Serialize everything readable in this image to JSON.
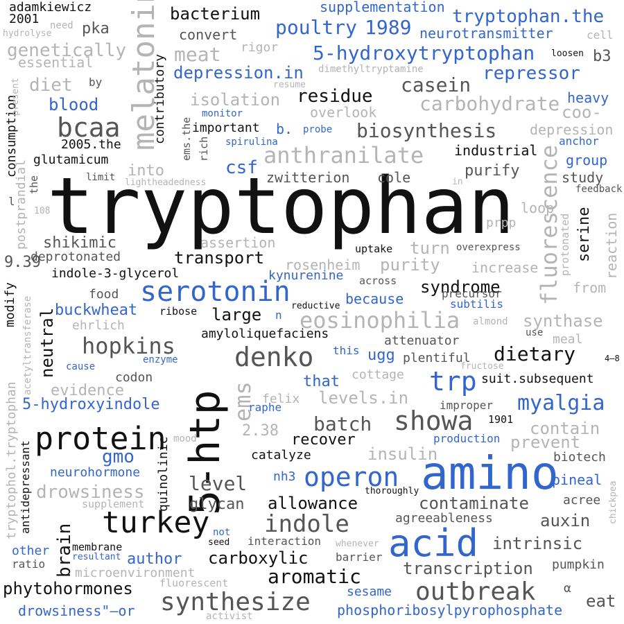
{
  "colors": {
    "black": "#111111",
    "dark_gray": "#555555",
    "light_gray": "#b4b4b4",
    "blue": "#3366cc",
    "background": "#ffffff"
  },
  "words": [
    {
      "text": "tryptophan",
      "color": "#111111"
    },
    {
      "text": "amino",
      "color": "#3366cc"
    },
    {
      "text": "5-htp",
      "color": "#111111"
    },
    {
      "text": "acid",
      "color": "#3366cc"
    },
    {
      "text": "melatonin",
      "color": "#b4b4b4"
    },
    {
      "text": "protein",
      "color": "#111111"
    },
    {
      "text": "serotonin",
      "color": "#3366cc"
    },
    {
      "text": "turkey",
      "color": "#111111"
    },
    {
      "text": "denko",
      "color": "#555555"
    },
    {
      "text": "bcaa",
      "color": "#555555"
    },
    {
      "text": "trp",
      "color": "#3366cc"
    },
    {
      "text": "operon",
      "color": "#3366cc"
    },
    {
      "text": "showa",
      "color": "#555555"
    },
    {
      "text": "synthesize",
      "color": "#555555"
    },
    {
      "text": "outbreak",
      "color": "#555555"
    },
    {
      "text": "anthranilate",
      "color": "#b4b4b4"
    },
    {
      "text": "eosinophilia",
      "color": "#b4b4b4"
    },
    {
      "text": "indole",
      "color": "#555555"
    },
    {
      "text": "hopkins",
      "color": "#555555"
    },
    {
      "text": "ems",
      "color": "#b4b4b4"
    },
    {
      "text": "fluorescence",
      "color": "#b4b4b4"
    },
    {
      "text": "meat",
      "color": "#b4b4b4"
    },
    {
      "text": "5-hydroxytryptophan",
      "color": "#3366cc"
    },
    {
      "text": "poultry",
      "color": "#3366cc"
    },
    {
      "text": "1989",
      "color": "#3366cc"
    },
    {
      "text": "tryptophan.the",
      "color": "#3366cc"
    },
    {
      "text": "repressor",
      "color": "#3366cc"
    },
    {
      "text": "myalgia",
      "color": "#3366cc"
    },
    {
      "text": "biosynthesis",
      "color": "#555555"
    },
    {
      "text": "carbohydrate",
      "color": "#b4b4b4"
    },
    {
      "text": "casein",
      "color": "#555555"
    },
    {
      "text": "residue",
      "color": "#111111"
    },
    {
      "text": "csf",
      "color": "#3366cc"
    },
    {
      "text": "dietary",
      "color": "#111111"
    },
    {
      "text": "batch",
      "color": "#555555"
    },
    {
      "text": "level",
      "color": "#555555"
    },
    {
      "text": "aromatic",
      "color": "#111111"
    },
    {
      "text": "brain",
      "color": "#111111"
    },
    {
      "text": "neutral",
      "color": "#111111"
    },
    {
      "text": "drowsiness",
      "color": "#b4b4b4"
    },
    {
      "text": "gmo",
      "color": "#3366cc"
    },
    {
      "text": "genetically",
      "color": "#b4b4b4"
    },
    {
      "text": "diet",
      "color": "#b4b4b4"
    },
    {
      "text": "blood",
      "color": "#3366cc"
    },
    {
      "text": "depression.in",
      "color": "#3366cc"
    },
    {
      "text": "bacterium",
      "color": "#111111"
    },
    {
      "text": "isolation",
      "color": "#b4b4b4"
    },
    {
      "text": "levels.in",
      "color": "#b4b4b4"
    },
    {
      "text": "contaminate",
      "color": "#555555"
    },
    {
      "text": "transcription",
      "color": "#555555"
    },
    {
      "text": "intrinsic",
      "color": "#555555"
    },
    {
      "text": "auxin",
      "color": "#555555"
    },
    {
      "text": "eat",
      "color": "#555555"
    },
    {
      "text": "b3",
      "color": "#555555"
    },
    {
      "text": "syndrome",
      "color": "#111111"
    },
    {
      "text": "carboxylic",
      "color": "#111111"
    },
    {
      "text": "allowance",
      "color": "#111111"
    },
    {
      "text": "phytohormones",
      "color": "#111111"
    },
    {
      "text": "author",
      "color": "#3366cc"
    },
    {
      "text": "buckwheat",
      "color": "#3366cc"
    },
    {
      "text": "5-hydroxyindole",
      "color": "#3366cc"
    },
    {
      "text": "that",
      "color": "#3366cc"
    },
    {
      "text": "ugg",
      "color": "#3366cc"
    },
    {
      "text": "synthase",
      "color": "#b4b4b4"
    },
    {
      "text": "purity",
      "color": "#b4b4b4"
    },
    {
      "text": "insulin",
      "color": "#b4b4b4"
    },
    {
      "text": "contain",
      "color": "#b4b4b4"
    },
    {
      "text": "prevent",
      "color": "#b4b4b4"
    },
    {
      "text": "evidence",
      "color": "#b4b4b4"
    },
    {
      "text": "turn",
      "color": "#b4b4b4"
    },
    {
      "text": "2.38",
      "color": "#b4b4b4"
    },
    {
      "text": "coo-",
      "color": "#b4b4b4"
    },
    {
      "text": "into",
      "color": "#b4b4b4"
    },
    {
      "text": "transport",
      "color": "#111111"
    },
    {
      "text": "large",
      "color": "#111111"
    },
    {
      "text": "recover",
      "color": "#111111"
    },
    {
      "text": "purify",
      "color": "#555555"
    },
    {
      "text": "pka",
      "color": "#555555"
    },
    {
      "text": "shikimic",
      "color": "#555555"
    },
    {
      "text": "glycan",
      "color": "#555555"
    },
    {
      "text": "9.39",
      "color": "#555555"
    },
    {
      "text": "serine",
      "color": "#111111"
    },
    {
      "text": "heavy",
      "color": "#3366cc"
    },
    {
      "text": "group",
      "color": "#3366cc"
    },
    {
      "text": "pineal",
      "color": "#3366cc"
    },
    {
      "text": "nh3",
      "color": "#3366cc"
    },
    {
      "text": "sesame",
      "color": "#3366cc"
    },
    {
      "text": "phosphoribosylpyrophosphate",
      "color": "#3366cc"
    },
    {
      "text": "drowsiness\"—or",
      "color": "#3366cc"
    },
    {
      "text": "neurohormone",
      "color": "#3366cc"
    },
    {
      "text": "neurotransmitter",
      "color": "#3366cc"
    },
    {
      "text": "supplementation",
      "color": "#3366cc"
    },
    {
      "text": "kynurenine",
      "color": "#3366cc"
    },
    {
      "text": "because",
      "color": "#3366cc"
    },
    {
      "text": "subtilis",
      "color": "#3366cc"
    },
    {
      "text": "production",
      "color": "#3366cc"
    },
    {
      "text": "other",
      "color": "#3366cc"
    },
    {
      "text": "raphe",
      "color": "#3366cc"
    },
    {
      "text": "anchor",
      "color": "#3366cc"
    },
    {
      "text": "spirulina",
      "color": "#3366cc"
    },
    {
      "text": "monitor",
      "color": "#3366cc"
    },
    {
      "text": "probe",
      "color": "#3366cc"
    },
    {
      "text": "b.",
      "color": "#3366cc"
    },
    {
      "text": "cause",
      "color": "#3366cc"
    },
    {
      "text": "enzyme",
      "color": "#3366cc"
    },
    {
      "text": "this",
      "color": "#3366cc"
    },
    {
      "text": "n",
      "color": "#3366cc"
    },
    {
      "text": "not",
      "color": "#3366cc"
    },
    {
      "text": "resultant",
      "color": "#3366cc"
    },
    {
      "text": "important",
      "color": "#111111"
    },
    {
      "text": "industrial",
      "color": "#111111"
    },
    {
      "text": "glutamicum",
      "color": "#111111"
    },
    {
      "text": "2005.the",
      "color": "#111111"
    },
    {
      "text": "indole-3-glycerol",
      "color": "#111111"
    },
    {
      "text": "amyloliquefaciens",
      "color": "#111111"
    },
    {
      "text": "catalyze",
      "color": "#111111"
    },
    {
      "text": "suit.subsequent",
      "color": "#111111"
    },
    {
      "text": "adamkiewicz",
      "color": "#111111"
    },
    {
      "text": "2001",
      "color": "#111111"
    },
    {
      "text": "consumption",
      "color": "#111111"
    },
    {
      "text": "contributory",
      "color": "#111111"
    },
    {
      "text": "quinolinic",
      "color": "#111111"
    },
    {
      "text": "modify",
      "color": "#111111"
    },
    {
      "text": "antidepressant",
      "color": "#111111"
    },
    {
      "text": "uptake",
      "color": "#111111"
    },
    {
      "text": "ribose",
      "color": "#111111"
    },
    {
      "text": "membrane",
      "color": "#111111"
    },
    {
      "text": "1901",
      "color": "#111111"
    },
    {
      "text": "4–8",
      "color": "#111111"
    },
    {
      "text": "seed",
      "color": "#111111"
    },
    {
      "text": "thoroughly",
      "color": "#111111"
    },
    {
      "text": "reductive",
      "color": "#111111"
    },
    {
      "text": "loosen",
      "color": "#111111"
    },
    {
      "text": "deprotonated",
      "color": "#555555"
    },
    {
      "text": "convert",
      "color": "#555555"
    },
    {
      "text": "cole",
      "color": "#555555"
    },
    {
      "text": "zwitterion",
      "color": "#555555"
    },
    {
      "text": "study",
      "color": "#555555"
    },
    {
      "text": "food",
      "color": "#555555"
    },
    {
      "text": "codon",
      "color": "#555555"
    },
    {
      "text": "attenuator",
      "color": "#555555"
    },
    {
      "text": "plentiful",
      "color": "#555555"
    },
    {
      "text": "agreeableness",
      "color": "#555555"
    },
    {
      "text": "acree",
      "color": "#555555"
    },
    {
      "text": "biotech",
      "color": "#555555"
    },
    {
      "text": "pumpkin",
      "color": "#555555"
    },
    {
      "text": "α",
      "color": "#555555"
    },
    {
      "text": "precursor",
      "color": "#555555"
    },
    {
      "text": "improper",
      "color": "#555555"
    },
    {
      "text": "interaction",
      "color": "#555555"
    },
    {
      "text": "barrier",
      "color": "#555555"
    },
    {
      "text": "ratio",
      "color": "#555555"
    },
    {
      "text": "by",
      "color": "#555555"
    },
    {
      "text": "across",
      "color": "#555555"
    },
    {
      "text": "use",
      "color": "#555555"
    },
    {
      "text": "overexpress",
      "color": "#555555"
    },
    {
      "text": "ems.the",
      "color": "#555555"
    },
    {
      "text": "rich",
      "color": "#555555"
    },
    {
      "text": "limit",
      "color": "#555555"
    },
    {
      "text": "feedback",
      "color": "#555555"
    },
    {
      "text": "the",
      "color": "#555555"
    },
    {
      "text": "l",
      "color": "#555555"
    },
    {
      "text": "essential",
      "color": "#b4b4b4"
    },
    {
      "text": "rigor",
      "color": "#b4b4b4"
    },
    {
      "text": "dimethyltryptamine",
      "color": "#b4b4b4"
    },
    {
      "text": "resume",
      "color": "#b4b4b4"
    },
    {
      "text": "overlook",
      "color": "#b4b4b4"
    },
    {
      "text": "depression",
      "color": "#b4b4b4"
    },
    {
      "text": "assertion",
      "color": "#b4b4b4"
    },
    {
      "text": "rosenheim",
      "color": "#b4b4b4"
    },
    {
      "text": "increase",
      "color": "#b4b4b4"
    },
    {
      "text": "from",
      "color": "#b4b4b4"
    },
    {
      "text": "reaction",
      "color": "#b4b4b4"
    },
    {
      "text": "protonated",
      "color": "#b4b4b4"
    },
    {
      "text": "loop",
      "color": "#b4b4b4"
    },
    {
      "text": "prpp",
      "color": "#b4b4b4"
    },
    {
      "text": "postprandial",
      "color": "#b4b4b4"
    },
    {
      "text": "108",
      "color": "#b4b4b4"
    },
    {
      "text": "lightheadedness",
      "color": "#b4b4b4"
    },
    {
      "text": "in",
      "color": "#b4b4b4"
    },
    {
      "text": "ehrlich",
      "color": "#b4b4b4"
    },
    {
      "text": "felix",
      "color": "#b4b4b4"
    },
    {
      "text": "cottage",
      "color": "#b4b4b4"
    },
    {
      "text": "almond",
      "color": "#b4b4b4"
    },
    {
      "text": "meal",
      "color": "#b4b4b4"
    },
    {
      "text": "fructose",
      "color": "#b4b4b4"
    },
    {
      "text": "mood",
      "color": "#b4b4b4"
    },
    {
      "text": "supplement",
      "color": "#b4b4b4"
    },
    {
      "text": "whenever",
      "color": "#b4b4b4"
    },
    {
      "text": "microenvironment",
      "color": "#b4b4b4"
    },
    {
      "text": "fluorescent",
      "color": "#b4b4b4"
    },
    {
      "text": "activist",
      "color": "#b4b4b4"
    },
    {
      "text": "chickpea",
      "color": "#b4b4b4"
    },
    {
      "text": "acetyltransferase",
      "color": "#b4b4b4"
    },
    {
      "text": "tryptophol.tryptophan",
      "color": "#b4b4b4"
    },
    {
      "text": "need",
      "color": "#b4b4b4"
    },
    {
      "text": "hydrolyse",
      "color": "#b4b4b4"
    },
    {
      "text": "present",
      "color": "#b4b4b4"
    },
    {
      "text": "cell",
      "color": "#b4b4b4"
    }
  ]
}
